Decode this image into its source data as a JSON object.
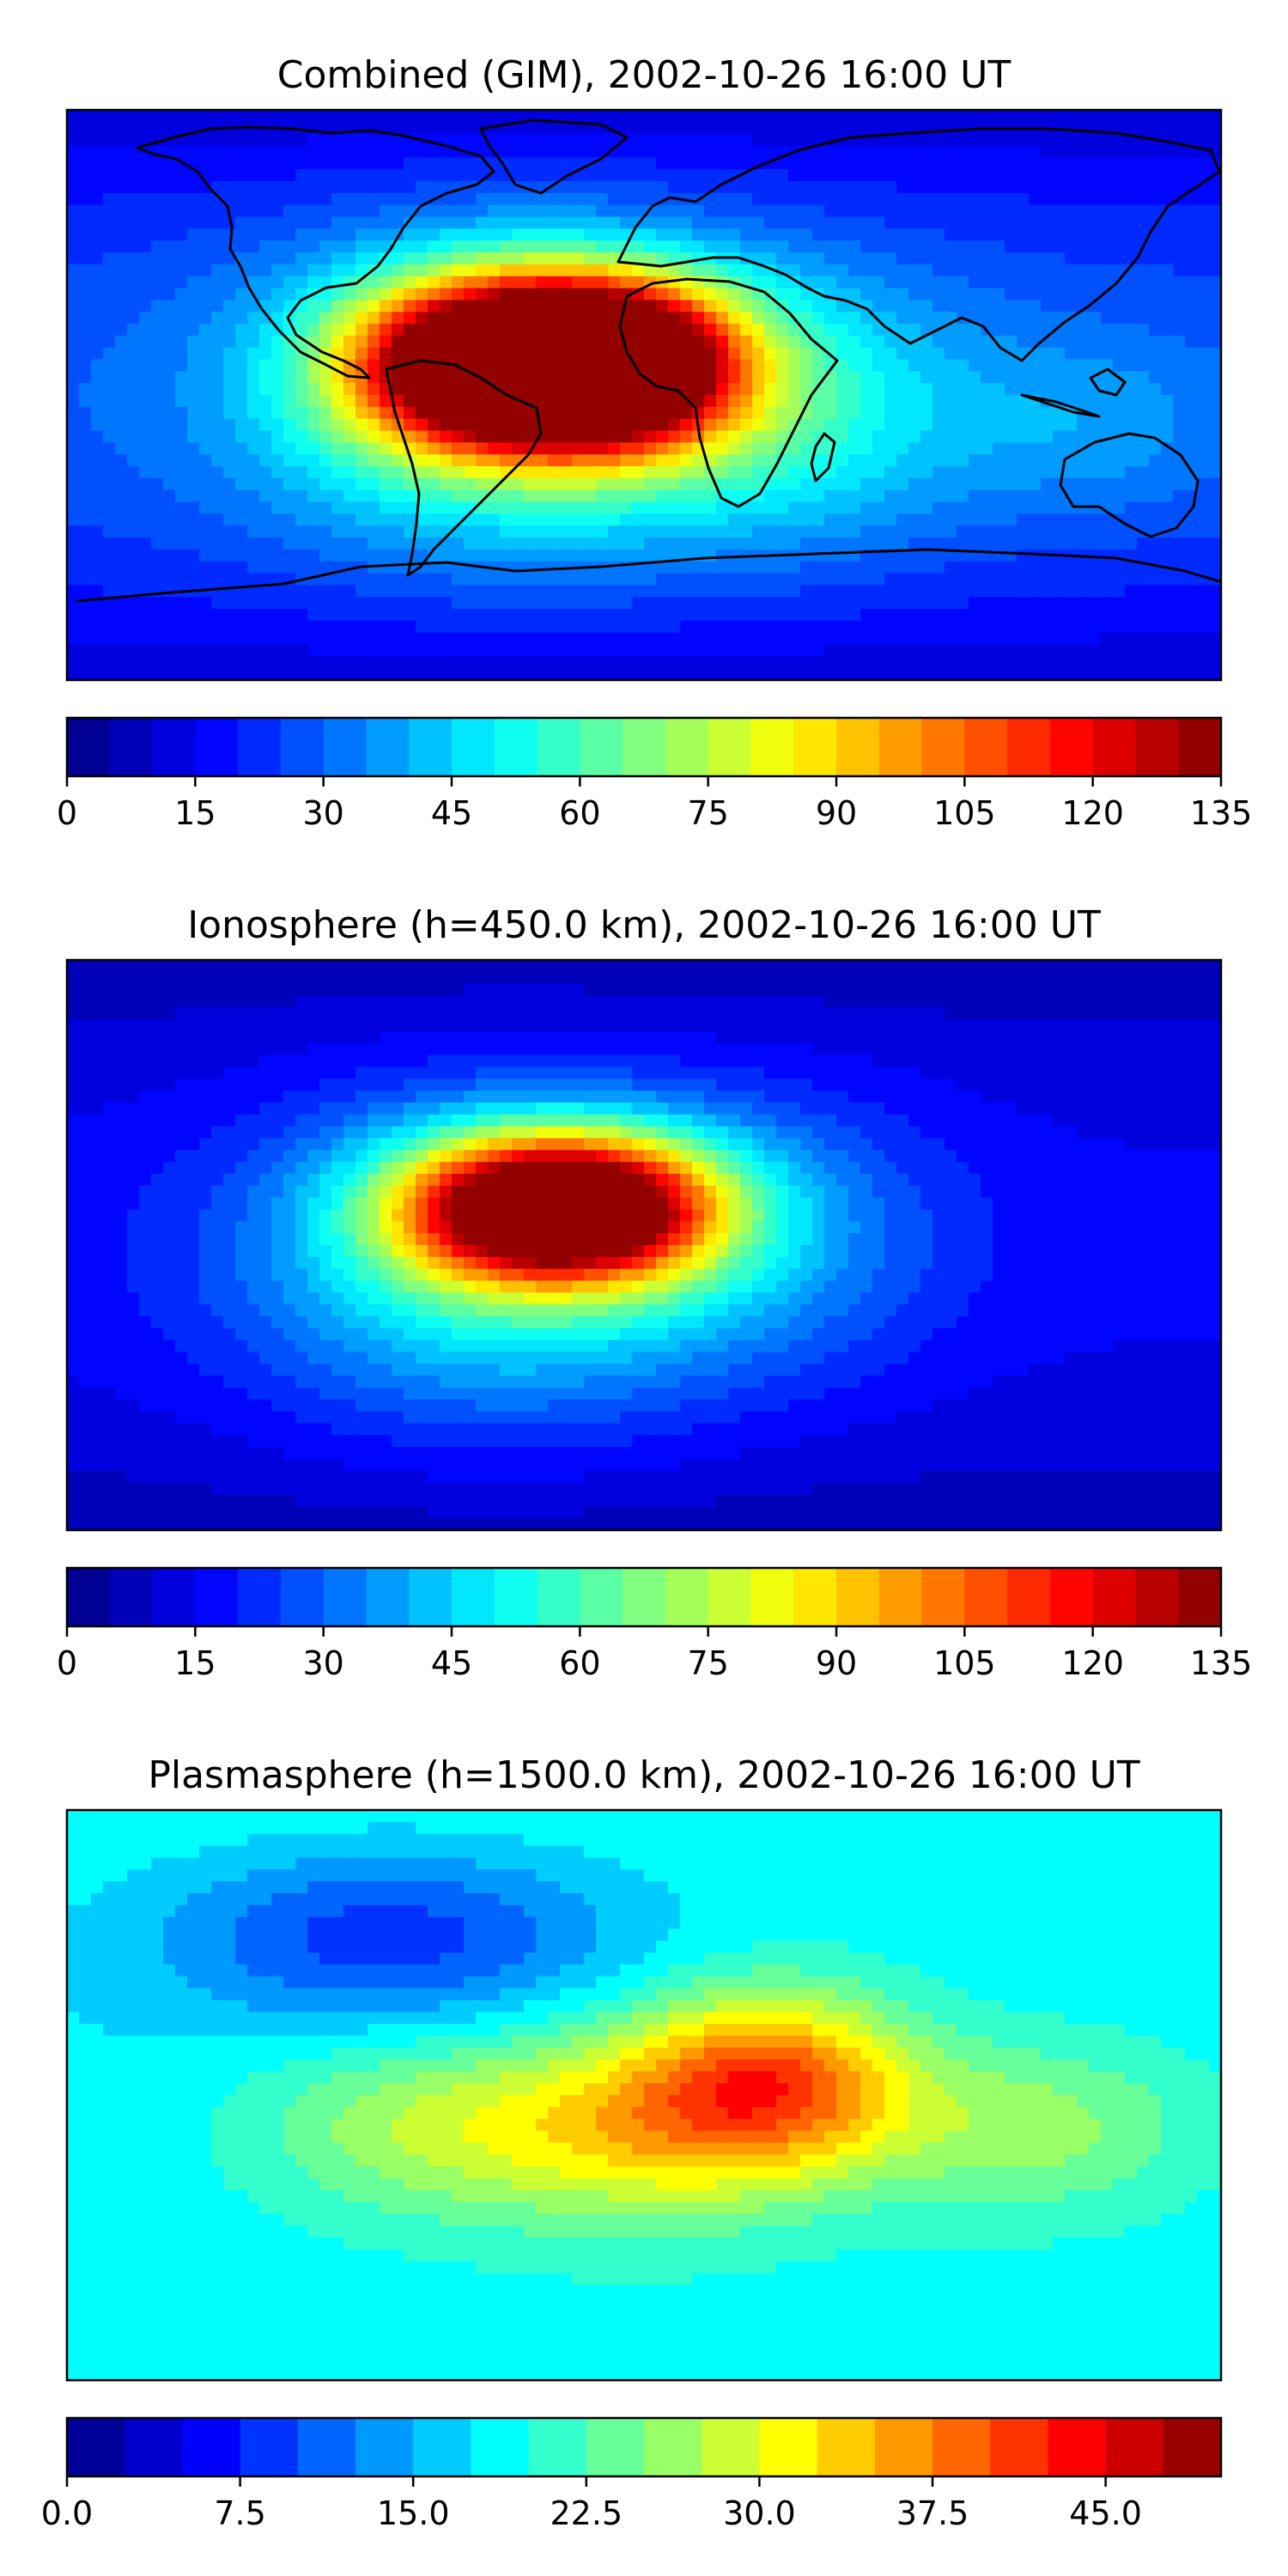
{
  "chart_data": [
    {
      "type": "heatmap",
      "title": "Combined (GIM), 2002-10-26 16:00 UT",
      "colorbar": {
        "levels_min": 0,
        "levels_max": 135,
        "levels_step": 5,
        "tick_labels": [
          "0",
          "15",
          "30",
          "45",
          "60",
          "75",
          "90",
          "105",
          "120",
          "135"
        ],
        "placement": "bottom"
      },
      "field": {
        "background": 28,
        "peaks": [
          {
            "lon": -50,
            "lat": 10,
            "value": 110,
            "sx": 30,
            "sy": 18
          },
          {
            "lon": -10,
            "lat": 10,
            "value": 120,
            "sx": 28,
            "sy": 18
          },
          {
            "lon": -40,
            "lat": 0,
            "value": 40,
            "sx": 55,
            "sy": 35
          },
          {
            "lon": 50,
            "lat": -5,
            "value": 20,
            "sx": 40,
            "sy": 30
          },
          {
            "lon": 140,
            "lat": -10,
            "value": 10,
            "sx": 30,
            "sy": 20
          }
        ],
        "polar_drop": 18
      }
    },
    {
      "type": "heatmap",
      "title": "Ionosphere  (h=450.0 km), 2002-10-26 16:00 UT",
      "colorbar": {
        "levels_min": 0,
        "levels_max": 135,
        "levels_step": 5,
        "tick_labels": [
          "0",
          "15",
          "30",
          "45",
          "60",
          "75",
          "90",
          "105",
          "120",
          "135"
        ],
        "placement": "bottom"
      },
      "field": {
        "background": 16,
        "peaks": [
          {
            "lon": -40,
            "lat": 12,
            "value": 85,
            "sx": 30,
            "sy": 16
          },
          {
            "lon": -10,
            "lat": 12,
            "value": 70,
            "sx": 28,
            "sy": 16
          },
          {
            "lon": -45,
            "lat": -5,
            "value": 40,
            "sx": 55,
            "sy": 35
          },
          {
            "lon": 40,
            "lat": 5,
            "value": 15,
            "sx": 40,
            "sy": 30
          }
        ],
        "polar_drop": 10
      }
    },
    {
      "type": "heatmap",
      "title": "Plasmasphere (h=1500.0 km), 2002-10-26 16:00 UT",
      "colorbar": {
        "levels_min": 0,
        "levels_max": 50,
        "levels_step": 2.5,
        "tick_labels": [
          "0.0",
          "7.5",
          "15.0",
          "22.5",
          "30.0",
          "37.5",
          "45.0"
        ],
        "tick_values": [
          0,
          7.5,
          15,
          22.5,
          30,
          37.5,
          45
        ],
        "placement": "bottom"
      },
      "field": {
        "background": 18,
        "peaks": [
          {
            "lon": 40,
            "lat": 5,
            "value": 18,
            "sx": 30,
            "sy": 20
          },
          {
            "lon": 0,
            "lat": -10,
            "value": 12,
            "sx": 40,
            "sy": 22
          },
          {
            "lon": -70,
            "lat": -10,
            "value": 8,
            "sx": 40,
            "sy": 20
          },
          {
            "lon": 120,
            "lat": -10,
            "value": 8,
            "sx": 40,
            "sy": 20
          },
          {
            "lon": -80,
            "lat": 50,
            "value": -10,
            "sx": 50,
            "sy": 20
          }
        ],
        "polar_drop": -2
      }
    }
  ]
}
